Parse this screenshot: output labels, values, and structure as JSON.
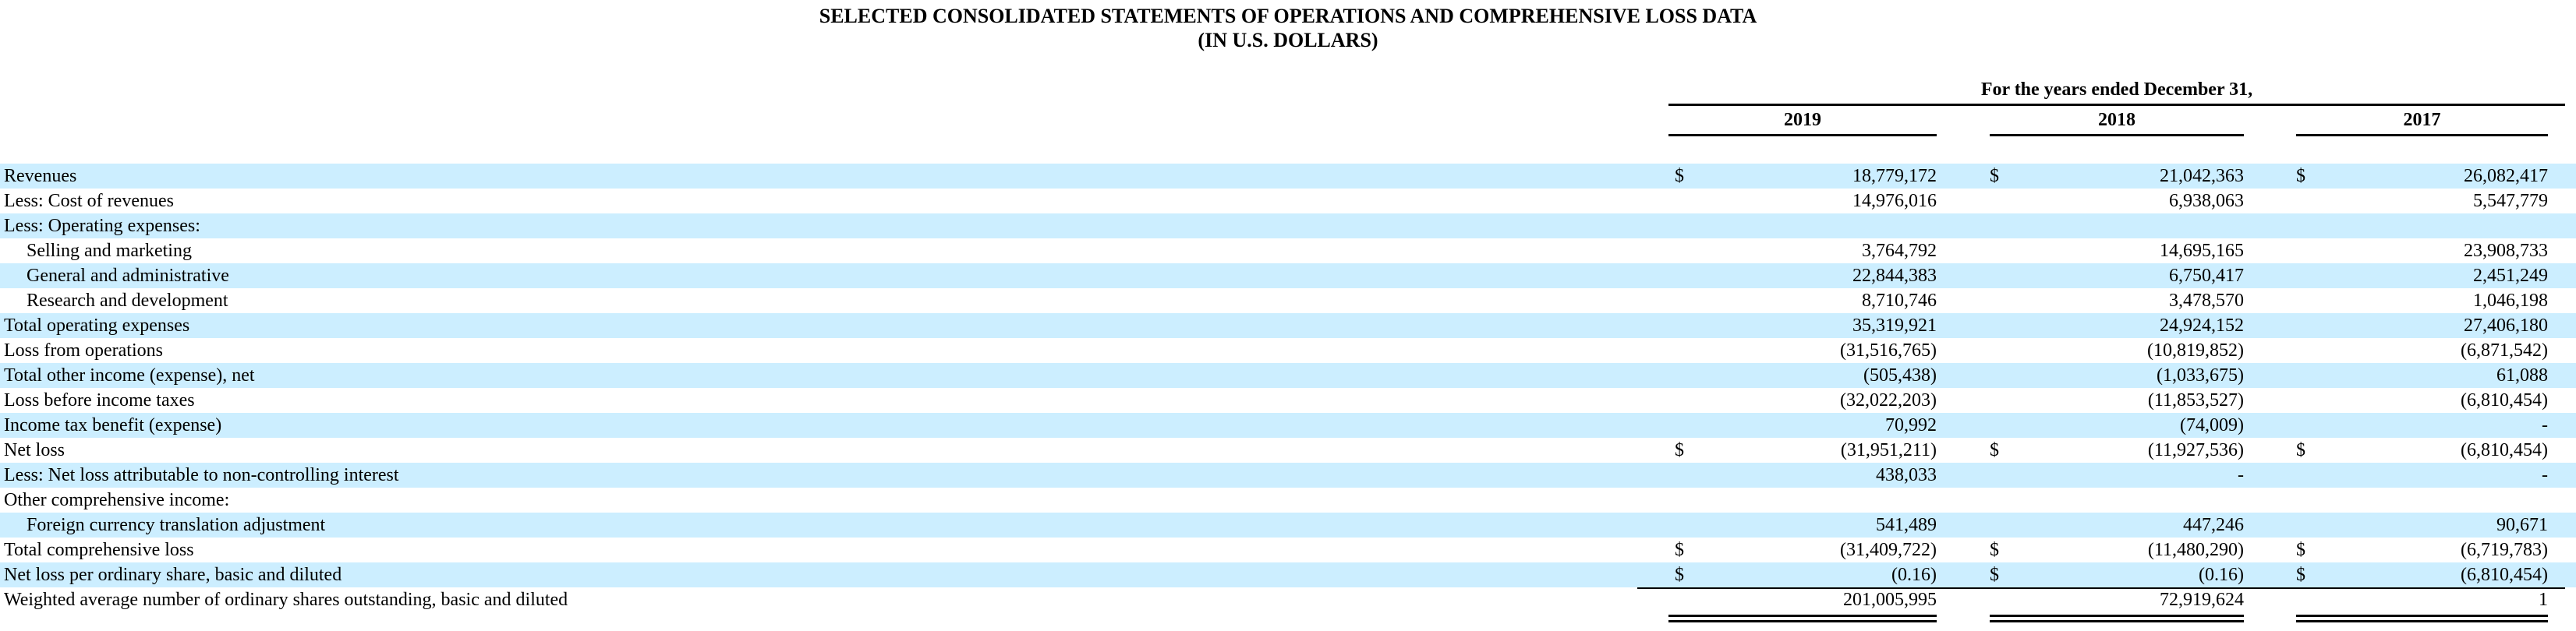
{
  "title": {
    "line1": "SELECTED CONSOLIDATED STATEMENTS OF OPERATIONS AND COMPREHENSIVE LOSS DATA",
    "line2": "(IN U.S. DOLLARS)"
  },
  "table": {
    "period_header": "For the years ended December 31,",
    "years": [
      "2019",
      "2018",
      "2017"
    ],
    "rows": [
      {
        "label": "Revenues",
        "indent": false,
        "shaded": true,
        "d1": "$",
        "v1": "18,779,172",
        "d2": "$",
        "v2": "21,042,363",
        "d3": "$",
        "v3": "26,082,417"
      },
      {
        "label": "Less: Cost of revenues",
        "indent": false,
        "shaded": false,
        "d1": "",
        "v1": "14,976,016",
        "d2": "",
        "v2": "6,938,063",
        "d3": "",
        "v3": "5,547,779"
      },
      {
        "label": "Less: Operating expenses:",
        "indent": false,
        "shaded": true,
        "d1": "",
        "v1": "",
        "d2": "",
        "v2": "",
        "d3": "",
        "v3": ""
      },
      {
        "label": "Selling and marketing",
        "indent": true,
        "shaded": false,
        "d1": "",
        "v1": "3,764,792",
        "d2": "",
        "v2": "14,695,165",
        "d3": "",
        "v3": "23,908,733"
      },
      {
        "label": "General and administrative",
        "indent": true,
        "shaded": true,
        "d1": "",
        "v1": "22,844,383",
        "d2": "",
        "v2": "6,750,417",
        "d3": "",
        "v3": "2,451,249"
      },
      {
        "label": "Research and development",
        "indent": true,
        "shaded": false,
        "d1": "",
        "v1": "8,710,746",
        "d2": "",
        "v2": "3,478,570",
        "d3": "",
        "v3": "1,046,198"
      },
      {
        "label": "Total operating expenses",
        "indent": false,
        "shaded": true,
        "d1": "",
        "v1": "35,319,921",
        "d2": "",
        "v2": "24,924,152",
        "d3": "",
        "v3": "27,406,180"
      },
      {
        "label": "Loss from operations",
        "indent": false,
        "shaded": false,
        "d1": "",
        "v1": "(31,516,765)",
        "d2": "",
        "v2": "(10,819,852)",
        "d3": "",
        "v3": "(6,871,542)"
      },
      {
        "label": "Total other income (expense), net",
        "indent": false,
        "shaded": true,
        "d1": "",
        "v1": "(505,438)",
        "d2": "",
        "v2": "(1,033,675)",
        "d3": "",
        "v3": "61,088"
      },
      {
        "label": "Loss before income taxes",
        "indent": false,
        "shaded": false,
        "d1": "",
        "v1": "(32,022,203)",
        "d2": "",
        "v2": "(11,853,527)",
        "d3": "",
        "v3": "(6,810,454)"
      },
      {
        "label": "Income tax benefit (expense)",
        "indent": false,
        "shaded": true,
        "d1": "",
        "v1": "70,992",
        "d2": "",
        "v2": "(74,009)",
        "d3": "",
        "v3": "-"
      },
      {
        "label": "Net loss",
        "indent": false,
        "shaded": false,
        "d1": "$",
        "v1": "(31,951,211)",
        "d2": "$",
        "v2": "(11,927,536)",
        "d3": "$",
        "v3": "(6,810,454)"
      },
      {
        "label": "Less: Net loss attributable to non-controlling interest",
        "indent": false,
        "shaded": true,
        "d1": "",
        "v1": "438,033",
        "d2": "",
        "v2": "-",
        "d3": "",
        "v3": "-"
      },
      {
        "label": "Other comprehensive income:",
        "indent": false,
        "shaded": false,
        "d1": "",
        "v1": "",
        "d2": "",
        "v2": "",
        "d3": "",
        "v3": ""
      },
      {
        "label": "Foreign currency translation adjustment",
        "indent": true,
        "shaded": true,
        "d1": "",
        "v1": "541,489",
        "d2": "",
        "v2": "447,246",
        "d3": "",
        "v3": "90,671"
      },
      {
        "label": "Total comprehensive loss",
        "indent": false,
        "shaded": false,
        "d1": "$",
        "v1": "(31,409,722)",
        "d2": "$",
        "v2": "(11,480,290)",
        "d3": "$",
        "v3": "(6,719,783)"
      },
      {
        "label": "Net loss per ordinary share, basic and diluted",
        "indent": false,
        "shaded": true,
        "d1": "$",
        "v1": "(0.16)",
        "d2": "$",
        "v2": "(0.16)",
        "d3": "$",
        "v3": "(6,810,454)"
      },
      {
        "label": "Weighted average number of ordinary shares outstanding, basic and diluted",
        "indent": false,
        "shaded": false,
        "d1": "",
        "v1": "201,005,995",
        "d2": "",
        "v2": "72,919,624",
        "d3": "",
        "v3": "1"
      }
    ]
  },
  "colors": {
    "stripe": "#cceeff",
    "rule": "#000000",
    "background": "#ffffff",
    "text": "#000000"
  }
}
